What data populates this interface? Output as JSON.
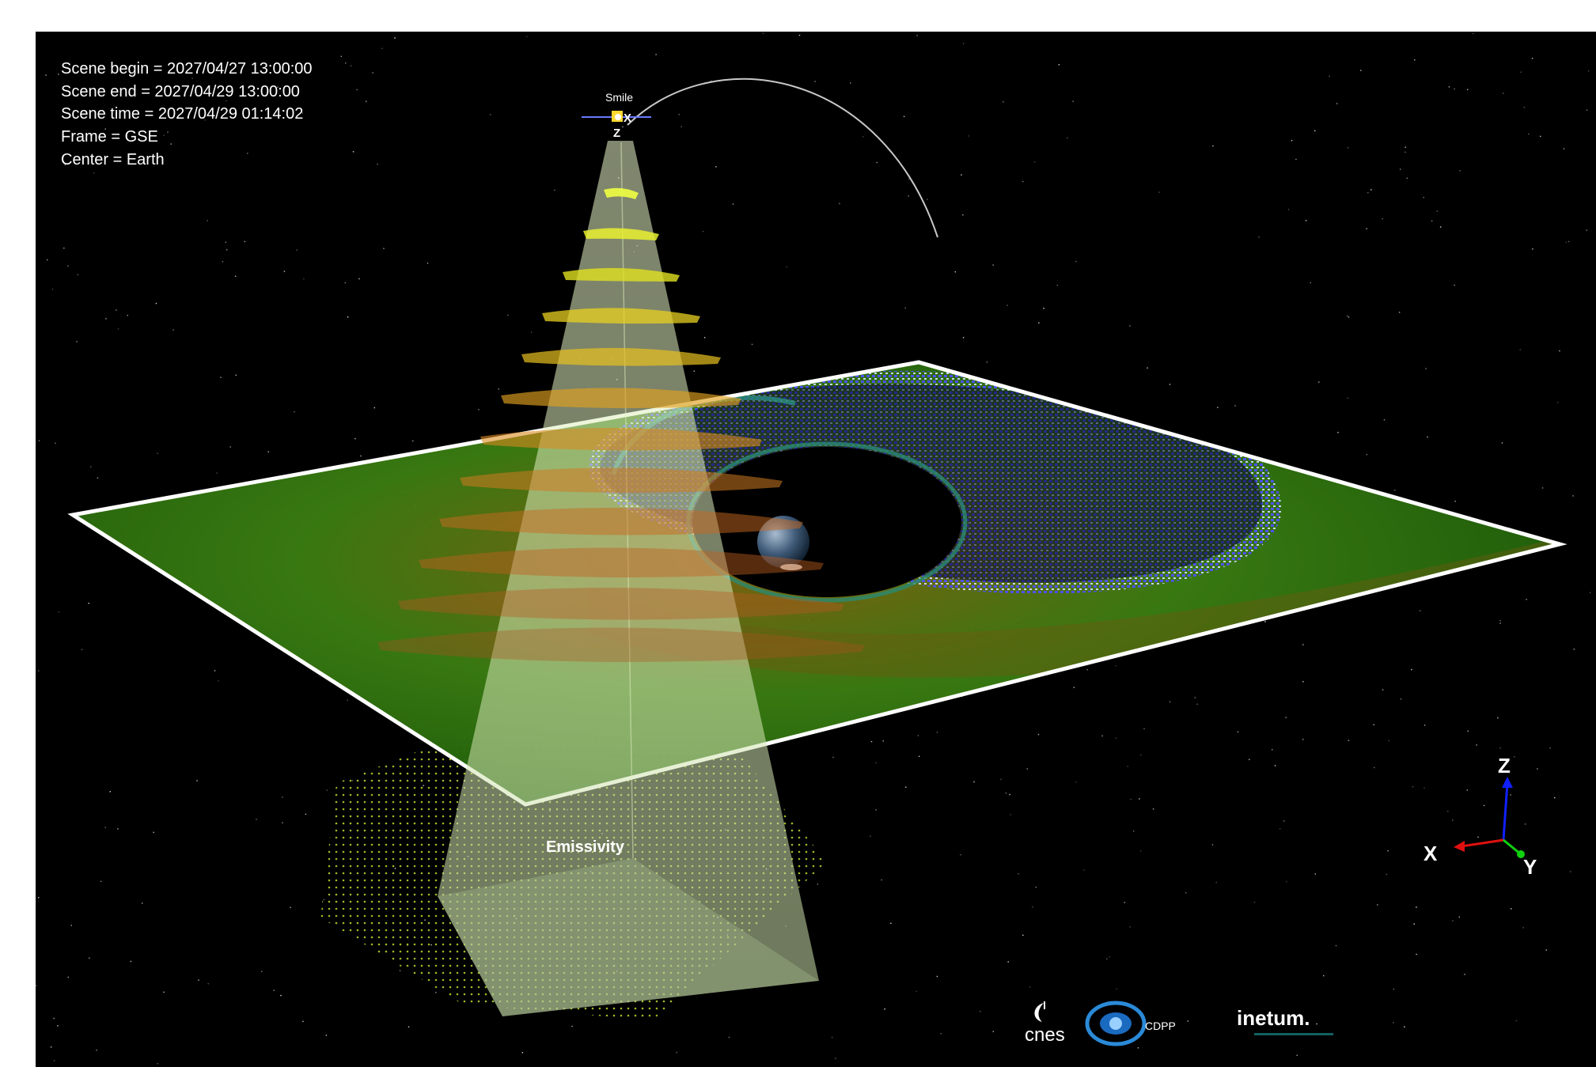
{
  "info": {
    "scene_begin": "Scene begin = 2027/04/27 13:00:00",
    "scene_end": "Scene end = 2027/04/29 13:00:00",
    "scene_time": "Scene time = 2027/04/29 01:14:02",
    "frame": "Frame = GSE",
    "center": "Center = Earth"
  },
  "spacecraft": {
    "label": "Smile",
    "axis_x": "X",
    "axis_z": "Z"
  },
  "cone": {
    "label": "Emissivity"
  },
  "triad": {
    "x": "X",
    "y": "Y",
    "z": "Z",
    "colors": {
      "x": "#e01010",
      "y": "#10d010",
      "z": "#1020ff"
    }
  },
  "logos": {
    "cnes": "cnes",
    "cdpp": "CDPP",
    "inetum": "inetum."
  },
  "colors": {
    "background": "#000000",
    "plane_green": "#2f7d10",
    "plane_blue": "#3a3ad8",
    "frame": "#ffffff",
    "cone": "#cfe6b0"
  }
}
